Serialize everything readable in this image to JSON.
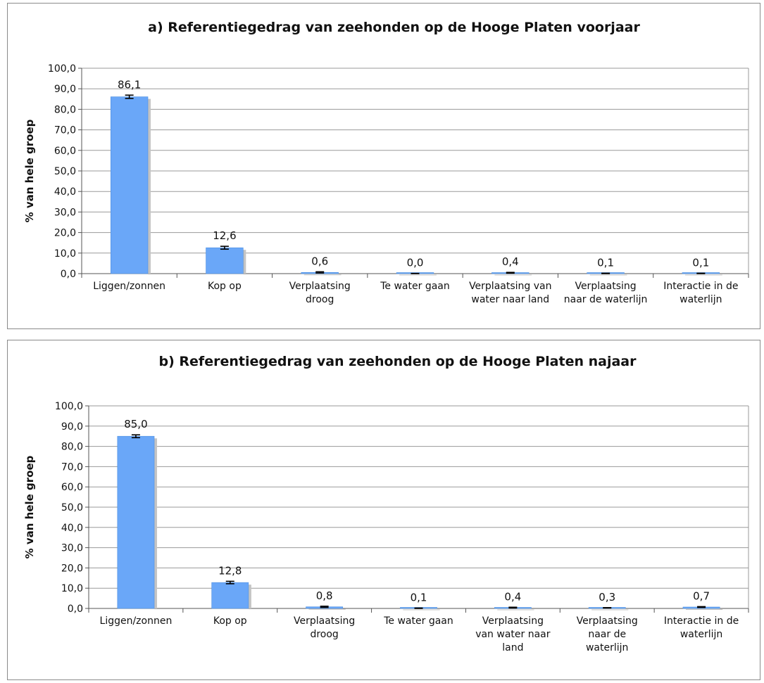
{
  "chart_data": [
    {
      "type": "bar",
      "title": "a) Referentiegedrag van zeehonden op de Hooge Platen voorjaar",
      "ylabel": "% van hele groep",
      "xlabel": "",
      "ylim": [
        0,
        100
      ],
      "yticks": [
        "0,0",
        "10,0",
        "20,0",
        "30,0",
        "40,0",
        "50,0",
        "60,0",
        "70,0",
        "80,0",
        "90,0",
        "100,0"
      ],
      "grid": true,
      "bar_color": "#6aa7f8",
      "categories": [
        [
          "Liggen/zonnen"
        ],
        [
          "Kop op"
        ],
        [
          "Verplaatsing",
          "droog"
        ],
        [
          "Te water gaan"
        ],
        [
          "Verplaatsing van",
          "water naar land"
        ],
        [
          "Verplaatsing",
          "naar de waterlijn"
        ],
        [
          "Interactie in de",
          "waterlijn"
        ]
      ],
      "values": [
        86.1,
        12.6,
        0.6,
        0.0,
        0.4,
        0.1,
        0.1
      ],
      "value_labels": [
        "86,1",
        "12,6",
        "0,6",
        "0,0",
        "0,4",
        "0,1",
        "0,1"
      ],
      "errors": [
        0.8,
        0.7,
        0.3,
        0.1,
        0.2,
        0.1,
        0.1
      ]
    },
    {
      "type": "bar",
      "title": "b) Referentiegedrag van zeehonden op de Hooge Platen najaar",
      "ylabel": "% van hele groep",
      "xlabel": "",
      "ylim": [
        0,
        100
      ],
      "yticks": [
        "0,0",
        "10,0",
        "20,0",
        "30,0",
        "40,0",
        "50,0",
        "60,0",
        "70,0",
        "80,0",
        "90,0",
        "100,0"
      ],
      "grid": true,
      "bar_color": "#6aa7f8",
      "categories": [
        [
          "Liggen/zonnen"
        ],
        [
          "Kop op"
        ],
        [
          "Verplaatsing",
          "droog"
        ],
        [
          "Te water gaan"
        ],
        [
          "Verplaatsing",
          "van water naar",
          "land"
        ],
        [
          "Verplaatsing",
          "naar de",
          "waterlijn"
        ],
        [
          "Interactie in de",
          "waterlijn"
        ]
      ],
      "values": [
        85.0,
        12.8,
        0.8,
        0.1,
        0.4,
        0.3,
        0.7
      ],
      "value_labels": [
        "85,0",
        "12,8",
        "0,8",
        "0,1",
        "0,4",
        "0,3",
        "0,7"
      ],
      "errors": [
        0.7,
        0.6,
        0.3,
        0.1,
        0.2,
        0.1,
        0.2
      ]
    }
  ]
}
